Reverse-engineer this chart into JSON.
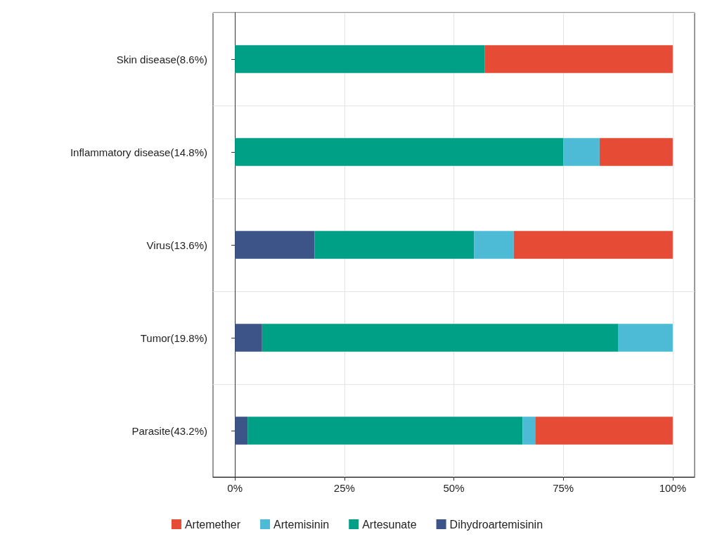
{
  "chart_data": {
    "type": "bar",
    "orientation": "horizontal",
    "stacked": true,
    "categories": [
      "Skin disease(8.6%)",
      "Inflammatory disease(14.8%)",
      "Virus(13.6%)",
      "Tumor(19.8%)",
      "Parasite(43.2%)"
    ],
    "series": [
      {
        "name": "Dihydroartemisinin",
        "color": "#3c5488",
        "values": [
          0,
          0,
          18.2,
          6.2,
          2.9
        ]
      },
      {
        "name": "Artesunate",
        "color": "#00a087",
        "values": [
          57.1,
          75,
          36.4,
          81.3,
          62.8
        ]
      },
      {
        "name": "Artemisinin",
        "color": "#4dbbd5",
        "values": [
          0,
          8.3,
          9.1,
          12.5,
          2.9
        ]
      },
      {
        "name": "Artemether",
        "color": "#e64b35",
        "values": [
          42.9,
          16.7,
          36.3,
          0,
          31.4
        ]
      }
    ],
    "xlim": [
      -5,
      105
    ],
    "xticks": [
      {
        "value": 0,
        "label": "0%"
      },
      {
        "value": 25,
        "label": "25%"
      },
      {
        "value": 50,
        "label": "50%"
      },
      {
        "value": 75,
        "label": "75%"
      },
      {
        "value": 100,
        "label": "100%"
      }
    ],
    "grid": true,
    "legend": "bottom"
  }
}
